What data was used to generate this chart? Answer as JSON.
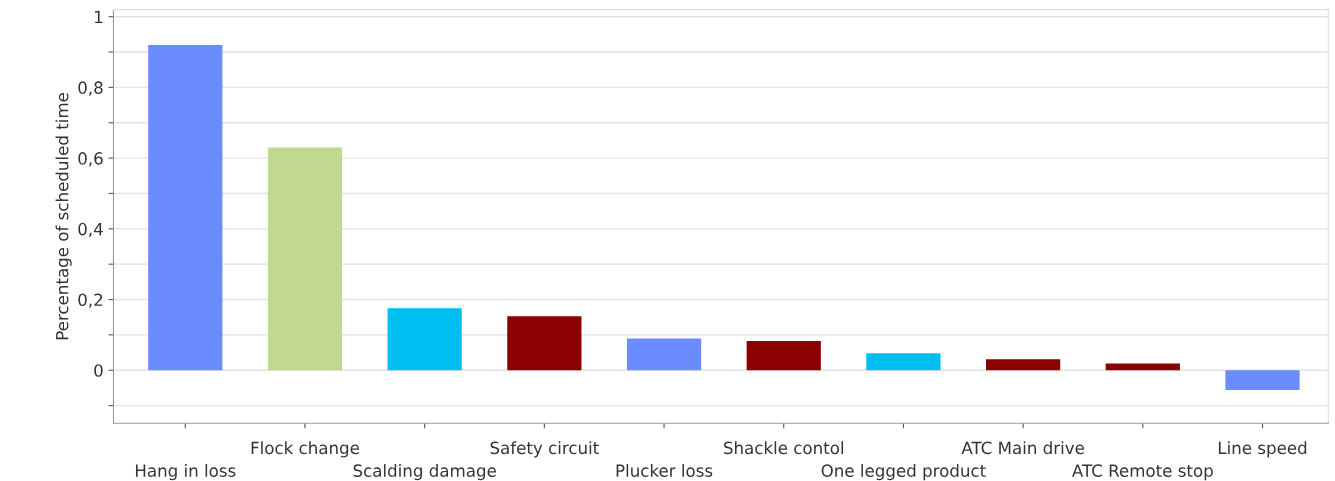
{
  "chart_data": {
    "type": "bar",
    "ylabel": "Percentage of scheduled time",
    "categories": [
      "Hang in loss",
      "Flock change",
      "Scalding damage",
      "Safety circuit",
      "Plucker loss",
      "Shackle contol",
      "One legged product",
      "ATC Main drive",
      "ATC Remote stop",
      "Line speed"
    ],
    "values": [
      0.92,
      0.63,
      0.175,
      0.153,
      0.09,
      0.083,
      0.048,
      0.031,
      0.019,
      -0.056
    ],
    "colors": [
      "#6b8cff",
      "#c0d890",
      "#00bff0",
      "#8b0000",
      "#6b8cff",
      "#8b0000",
      "#00bff0",
      "#8b0000",
      "#8b0000",
      "#6b8cff"
    ],
    "ylim": [
      -0.15,
      1.02
    ],
    "yticks": [
      {
        "value": -0.1,
        "label": null
      },
      {
        "value": 0,
        "label": "0"
      },
      {
        "value": 0.1,
        "label": null
      },
      {
        "value": 0.2,
        "label": "0,2"
      },
      {
        "value": 0.3,
        "label": null
      },
      {
        "value": 0.4,
        "label": "0,4"
      },
      {
        "value": 0.5,
        "label": null
      },
      {
        "value": 0.6,
        "label": "0,6"
      },
      {
        "value": 0.7,
        "label": null
      },
      {
        "value": 0.8,
        "label": "0,8"
      },
      {
        "value": 0.9,
        "label": null
      },
      {
        "value": 1,
        "label": "1"
      }
    ],
    "grid": "y"
  }
}
